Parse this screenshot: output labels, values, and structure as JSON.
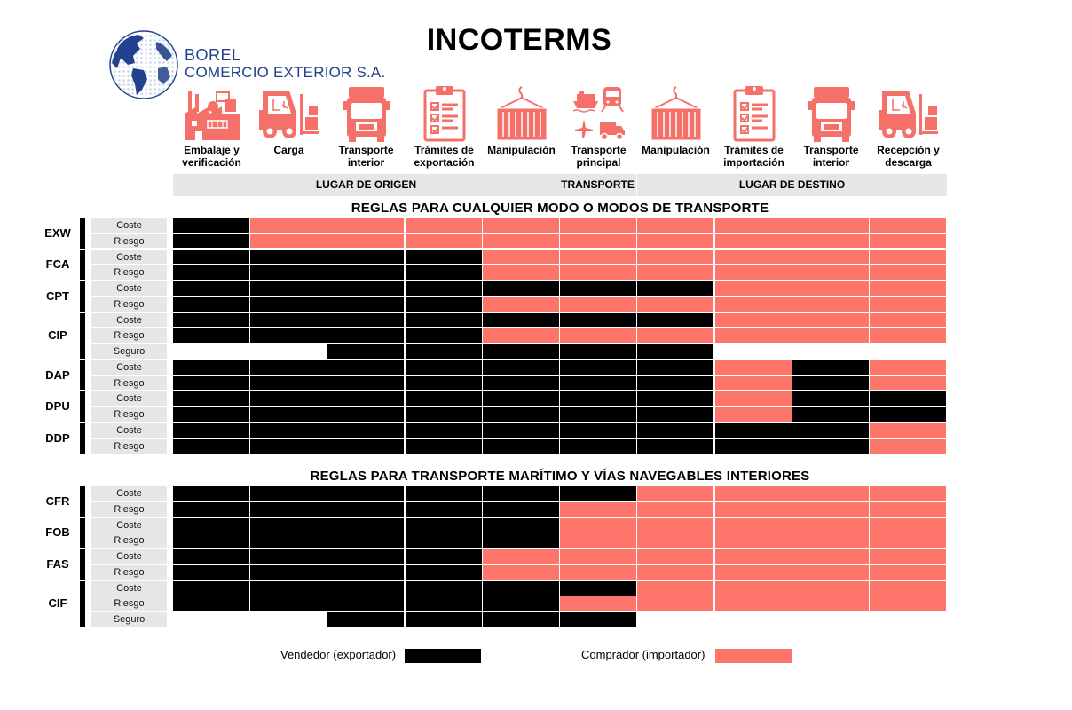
{
  "header": {
    "title": "INCOTERMS",
    "brand_line1": "BOREL",
    "brand_line2": "COMERCIO EXTERIOR S.A."
  },
  "stages": [
    {
      "label_1": "Embalaje y",
      "label_2": "verificación",
      "icon": "factory-icon"
    },
    {
      "label_1": "Carga",
      "label_2": "",
      "icon": "forklift-icon"
    },
    {
      "label_1": "Transporte",
      "label_2": "interior",
      "icon": "truck-icon"
    },
    {
      "label_1": "Trámites de",
      "label_2": "exportación",
      "icon": "clipboard-checklist-icon"
    },
    {
      "label_1": "Manipulación",
      "label_2": "",
      "icon": "container-crane-icon"
    },
    {
      "label_1": "Transporte",
      "label_2": "principal",
      "icon": "multimodal-transport-icon"
    },
    {
      "label_1": "Manipulación",
      "label_2": "",
      "icon": "container-crane-icon"
    },
    {
      "label_1": "Trámites de",
      "label_2": "importación",
      "icon": "clipboard-checklist-icon"
    },
    {
      "label_1": "Transporte",
      "label_2": "interior",
      "icon": "truck-icon"
    },
    {
      "label_1": "Recepción y",
      "label_2": "descarga",
      "icon": "forklift-icon"
    }
  ],
  "phases": {
    "origin": "LUGAR DE ORIGEN",
    "transport": "TRANSPORTE",
    "destination": "LUGAR DE DESTINO"
  },
  "sections": {
    "any_mode": "REGLAS PARA CUALQUIER MODO O MODOS DE TRANSPORTE",
    "maritime": "REGLAS PARA TRANSPORTE MARÍTIMO Y VÍAS NAVEGABLES INTERIORES"
  },
  "row_labels": {
    "cost": "Coste",
    "risk": "Riesgo",
    "insurance": "Seguro"
  },
  "legend": {
    "seller": "Vendedor (exportador)",
    "buyer": "Comprador (importador)",
    "seller_color": "#000000",
    "buyer_color": "#fe756c"
  },
  "terms_any_mode": [
    {
      "code": "EXW",
      "rows": [
        {
          "label": "Coste",
          "cells": "SBBBBBBBBB"
        },
        {
          "label": "Riesgo",
          "cells": "SBBBBBBBBB"
        }
      ]
    },
    {
      "code": "FCA",
      "rows": [
        {
          "label": "Coste",
          "cells": "SSSSBBBBBB"
        },
        {
          "label": "Riesgo",
          "cells": "SSSSBBBBBB"
        }
      ]
    },
    {
      "code": "CPT",
      "rows": [
        {
          "label": "Coste",
          "cells": "SSSSSSSBBB"
        },
        {
          "label": "Riesgo",
          "cells": "SSSSBBBBBB"
        }
      ]
    },
    {
      "code": "CIP",
      "rows": [
        {
          "label": "Coste",
          "cells": "SSSSSSSBBB"
        },
        {
          "label": "Riesgo",
          "cells": "SSSSBBBBBB"
        },
        {
          "label": "Seguro",
          "cells": "00SSSSS000"
        }
      ]
    },
    {
      "code": "DAP",
      "rows": [
        {
          "label": "Coste",
          "cells": "SSSSSSSBSB"
        },
        {
          "label": "Riesgo",
          "cells": "SSSSSSSBSB"
        }
      ]
    },
    {
      "code": "DPU",
      "rows": [
        {
          "label": "Coste",
          "cells": "SSSSSSSBSS"
        },
        {
          "label": "Riesgo",
          "cells": "SSSSSSSBSS"
        }
      ]
    },
    {
      "code": "DDP",
      "rows": [
        {
          "label": "Coste",
          "cells": "SSSSSSSSSB"
        },
        {
          "label": "Riesgo",
          "cells": "SSSSSSSSSB"
        }
      ]
    }
  ],
  "terms_maritime": [
    {
      "code": "CFR",
      "rows": [
        {
          "label": "Coste",
          "cells": "SSSSSSBBBB"
        },
        {
          "label": "Riesgo",
          "cells": "SSSSSBBBBB"
        }
      ]
    },
    {
      "code": "FOB",
      "rows": [
        {
          "label": "Coste",
          "cells": "SSSSSBBBBB"
        },
        {
          "label": "Riesgo",
          "cells": "SSSSSBBBBB"
        }
      ]
    },
    {
      "code": "FAS",
      "rows": [
        {
          "label": "Coste",
          "cells": "SSSSBBBBBB"
        },
        {
          "label": "Riesgo",
          "cells": "SSSSBBBBBB"
        }
      ]
    },
    {
      "code": "CIF",
      "rows": [
        {
          "label": "Coste",
          "cells": "SSSSSSBBBB"
        },
        {
          "label": "Riesgo",
          "cells": "SSSSSBBBBB"
        },
        {
          "label": "Seguro",
          "cells": "00SSSS0000"
        }
      ]
    }
  ]
}
